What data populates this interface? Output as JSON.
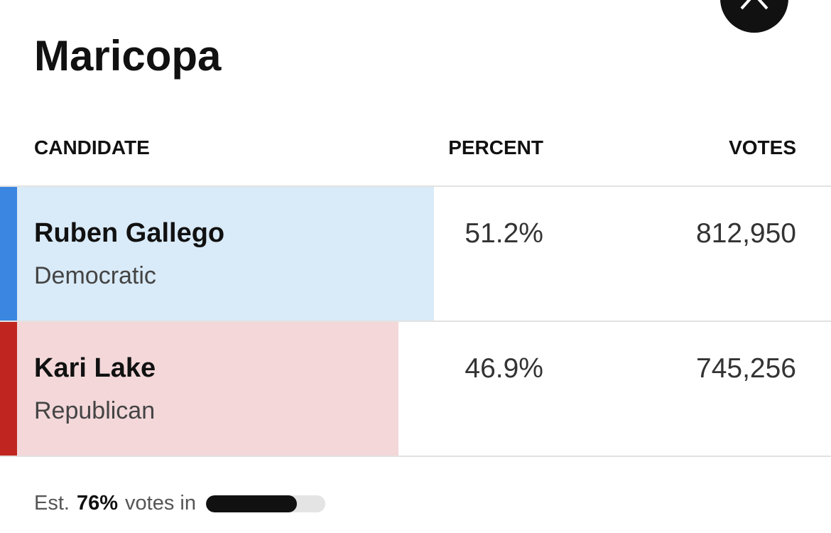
{
  "header": {
    "title": "Maricopa"
  },
  "table": {
    "columns": [
      "CANDIDATE",
      "PERCENT",
      "VOTES"
    ],
    "rows": [
      {
        "name": "Ruben Gallego",
        "party": "Democratic",
        "percent": "51.2%",
        "votes": "812,950",
        "color": "#3a86e0",
        "shade": "#d9eaf8"
      },
      {
        "name": "Kari Lake",
        "party": "Republican",
        "percent": "46.9%",
        "votes": "745,256",
        "color": "#c0261f",
        "shade": "#f3d7d9"
      }
    ]
  },
  "footer": {
    "prefix": "Est.",
    "percent": "76%",
    "suffix": "votes in"
  }
}
